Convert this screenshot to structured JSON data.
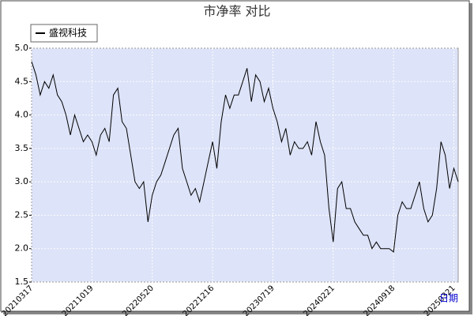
{
  "chart_data": {
    "type": "line",
    "title": "市净率  对比",
    "x_label": "日期",
    "categories": [
      "20210317",
      null,
      null,
      null,
      null,
      null,
      null,
      null,
      null,
      null,
      null,
      null,
      null,
      null,
      "20211019",
      null,
      null,
      null,
      null,
      null,
      null,
      null,
      null,
      null,
      null,
      null,
      null,
      null,
      "20220520",
      null,
      null,
      null,
      null,
      null,
      null,
      null,
      null,
      null,
      null,
      null,
      null,
      null,
      "20221216",
      null,
      null,
      null,
      null,
      null,
      null,
      null,
      null,
      null,
      null,
      null,
      null,
      null,
      "20230719",
      null,
      null,
      null,
      null,
      null,
      null,
      null,
      null,
      null,
      null,
      null,
      null,
      null,
      "20240221",
      null,
      null,
      null,
      null,
      null,
      null,
      null,
      null,
      null,
      null,
      null,
      null,
      null,
      "20240918",
      null,
      null,
      null,
      null,
      null,
      null,
      null,
      null,
      null,
      null,
      null,
      null,
      null,
      "20250321",
      null
    ],
    "series": [
      {
        "name": "盛视科技",
        "color": "#000000",
        "values": [
          4.8,
          4.6,
          4.3,
          4.5,
          4.4,
          4.6,
          4.3,
          4.2,
          4.0,
          3.7,
          4.0,
          3.8,
          3.6,
          3.7,
          3.6,
          3.4,
          3.7,
          3.8,
          3.6,
          4.3,
          4.4,
          3.9,
          3.8,
          3.4,
          3.0,
          2.9,
          3.0,
          2.4,
          2.8,
          3.0,
          3.1,
          3.3,
          3.5,
          3.7,
          3.8,
          3.2,
          3.0,
          2.8,
          2.9,
          2.7,
          3.0,
          3.3,
          3.6,
          3.2,
          3.9,
          4.3,
          4.1,
          4.3,
          4.3,
          4.5,
          4.7,
          4.2,
          4.6,
          4.5,
          4.2,
          4.4,
          4.1,
          3.9,
          3.6,
          3.8,
          3.4,
          3.6,
          3.5,
          3.5,
          3.6,
          3.4,
          3.9,
          3.6,
          3.4,
          2.6,
          2.1,
          2.9,
          3.0,
          2.6,
          2.6,
          2.4,
          2.3,
          2.2,
          2.2,
          2.0,
          2.1,
          2.0,
          2.0,
          2.0,
          1.95,
          2.5,
          2.7,
          2.6,
          2.6,
          2.8,
          3.0,
          2.6,
          2.4,
          2.5,
          2.9,
          3.6,
          3.4,
          2.9,
          3.2,
          3.0
        ]
      }
    ],
    "ylim": [
      1.5,
      5.0
    ],
    "yticks": [
      {
        "value": 1.5,
        "label": "1.5"
      },
      {
        "value": 2,
        "label": "2.0"
      },
      {
        "value": 2.5,
        "label": "2.5"
      },
      {
        "value": 3,
        "label": "3.0"
      },
      {
        "value": 3.5,
        "label": "3.5"
      },
      {
        "value": 4,
        "label": "4.0"
      },
      {
        "value": 4.5,
        "label": "4.5"
      },
      {
        "value": 5,
        "label": "5.0"
      }
    ],
    "grid": true,
    "legend": "top-left",
    "background": "#dde3f8"
  }
}
